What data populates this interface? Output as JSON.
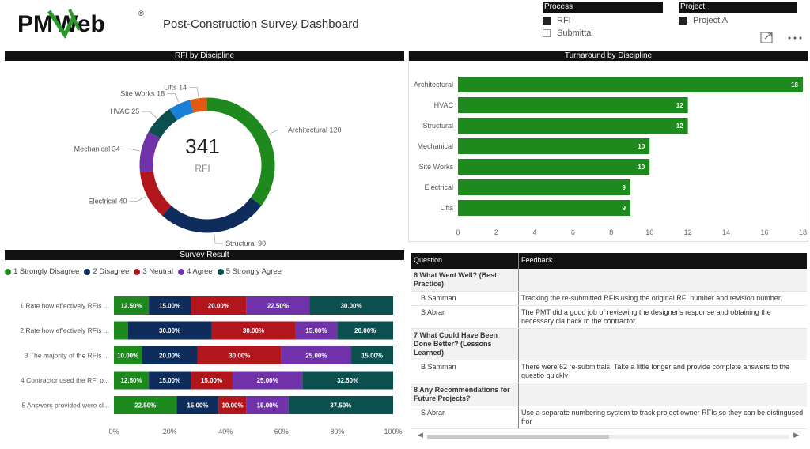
{
  "header": {
    "logo_text": "PMWeb",
    "registered": "®",
    "title": "Post-Construction Survey Dashboard"
  },
  "slicers": {
    "process": {
      "title": "Process",
      "items": [
        {
          "label": "RFI",
          "checked": true
        },
        {
          "label": "Submittal",
          "checked": false
        }
      ]
    },
    "project": {
      "title": "Project",
      "items": [
        {
          "label": "Project A",
          "checked": true
        }
      ]
    }
  },
  "icons": [
    "focus-mode-icon",
    "more-options-icon"
  ],
  "rfi_panel": {
    "title": "RFI by Discipline",
    "total": "341",
    "unit": "RFI"
  },
  "turn_panel": {
    "title": "Turnaround by Discipline"
  },
  "survey_panel": {
    "title": "Survey Result",
    "legend": [
      "1 Strongly Disagree",
      "2 Disagree",
      "3 Neutral",
      "4 Agree",
      "5 Strongly Agree"
    ]
  },
  "feedback": {
    "headers": {
      "question": "Question",
      "feedback": "Feedback"
    },
    "rows": [
      {
        "type": "group",
        "question": "6 What Went Well? (Best Practice)",
        "feedback": ""
      },
      {
        "type": "sub",
        "question": "B Samman",
        "feedback": "Tracking the re-submitted RFIs using the original RFI number and revision number."
      },
      {
        "type": "sub",
        "question": "S Abrar",
        "feedback": "The PMT did a good job of reviewing the designer's response and obtaining the necessary cla back to the contractor."
      },
      {
        "type": "group",
        "question": "7 What Could Have Been Done Better? (Lessons Learned)",
        "feedback": ""
      },
      {
        "type": "sub",
        "question": "B Samman",
        "feedback": "There were 62 re-submittals. Take a little longer and provide complete answers to the questio quickly"
      },
      {
        "type": "group",
        "question": "8 Any Recommendations for Future Projects?",
        "feedback": ""
      },
      {
        "type": "sub",
        "question": "S Abrar",
        "feedback": "Use a separate numbering system to track project owner RFIs so they can be distingused fror"
      }
    ]
  },
  "colors": {
    "green": "#1e8a1e",
    "navy": "#0f2d5c",
    "red": "#b0161b",
    "purple": "#6f32a8",
    "teal": "#0b4f4f",
    "blue": "#1a7fd6",
    "orange": "#e05a14"
  },
  "chart_data": [
    {
      "type": "pie",
      "title": "RFI by Discipline",
      "categories": [
        "Architectural",
        "Structural",
        "Electrical",
        "Mechanical",
        "HVAC",
        "Site Works",
        "Lifts"
      ],
      "values": [
        120,
        90,
        40,
        34,
        25,
        18,
        14
      ],
      "colors": [
        "#1e8a1e",
        "#0f2d5c",
        "#b0161b",
        "#6f32a8",
        "#0b4f4f",
        "#1a7fd6",
        "#e05a14"
      ],
      "total": 341
    },
    {
      "type": "bar",
      "orientation": "horizontal",
      "title": "Turnaround by Discipline",
      "categories": [
        "Architectural",
        "HVAC",
        "Structural",
        "Mechanical",
        "Site Works",
        "Electrical",
        "Lifts"
      ],
      "values": [
        18,
        12,
        12,
        10,
        10,
        9,
        9
      ],
      "xlim": [
        0,
        18
      ],
      "xticks": [
        0,
        2,
        4,
        6,
        8,
        10,
        12,
        14,
        16,
        18
      ]
    },
    {
      "type": "bar",
      "orientation": "horizontal",
      "stacked": true,
      "title": "Survey Result",
      "categories": [
        "1 Rate how effectively RFIs ...",
        "2 Rate how effectively RFIs ...",
        "3 The majority of the RFIs ...",
        "4 Contractor used the RFI p...",
        "5 Answers provided were cl..."
      ],
      "series": [
        {
          "name": "1 Strongly Disagree",
          "color": "#1e8a1e",
          "values": [
            12.5,
            5.0,
            10.0,
            12.5,
            22.5
          ],
          "labels": [
            "12.50%",
            "",
            "10.00%",
            "12.50%",
            "22.50%"
          ]
        },
        {
          "name": "2 Disagree",
          "color": "#0f2d5c",
          "values": [
            15.0,
            30.0,
            20.0,
            15.0,
            15.0
          ],
          "labels": [
            "15.00%",
            "30.00%",
            "20.00%",
            "15.00%",
            "15.00%"
          ]
        },
        {
          "name": "3 Neutral",
          "color": "#b0161b",
          "values": [
            20.0,
            30.0,
            30.0,
            15.0,
            10.0
          ],
          "labels": [
            "20.00%",
            "30.00%",
            "30.00%",
            "15.00%",
            "10.00%"
          ]
        },
        {
          "name": "4 Agree",
          "color": "#6f32a8",
          "values": [
            22.5,
            15.0,
            25.0,
            25.0,
            15.0
          ],
          "labels": [
            "22.50%",
            "15.00%",
            "25.00%",
            "25.00%",
            "15.00%"
          ]
        },
        {
          "name": "5 Strongly Agree",
          "color": "#0b4f4f",
          "values": [
            30.0,
            20.0,
            15.0,
            32.5,
            37.5
          ],
          "labels": [
            "30.00%",
            "20.00%",
            "15.00%",
            "32.50%",
            "37.50%"
          ]
        }
      ],
      "xticks": [
        "0%",
        "20%",
        "40%",
        "60%",
        "80%",
        "100%"
      ],
      "xlim": [
        0,
        100
      ]
    }
  ]
}
